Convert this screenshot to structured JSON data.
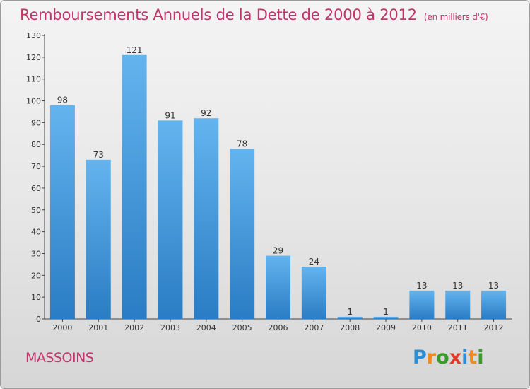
{
  "chart_data": {
    "type": "bar",
    "title": "Remboursements Annuels de la Dette de 2000 à 2012",
    "subtitle": "(en milliers d'€)",
    "categories": [
      "2000",
      "2001",
      "2002",
      "2003",
      "2004",
      "2005",
      "2006",
      "2007",
      "2008",
      "2009",
      "2010",
      "2011",
      "2012"
    ],
    "values": [
      98,
      73,
      121,
      91,
      92,
      78,
      29,
      24,
      1,
      1,
      13,
      13,
      13
    ],
    "yticks": [
      0,
      10,
      20,
      30,
      40,
      50,
      60,
      70,
      80,
      90,
      100,
      110,
      120,
      130
    ],
    "ylim": [
      0,
      130
    ],
    "xlabel": "",
    "ylabel": "",
    "grid": false
  },
  "footer": {
    "commune": "MASSOINS"
  },
  "logo": {
    "letters": [
      "P",
      "r",
      "o",
      "x",
      "i",
      "t",
      "i"
    ],
    "colors": [
      "#2a8fd6",
      "#f08a1c",
      "#3a9a2a",
      "#e23a2a",
      "#2a8fd6",
      "#f08a1c",
      "#3a9a2a"
    ]
  },
  "colors": {
    "title": "#c4336a",
    "bar_light": "#5fb0ea",
    "bar_dark": "#2b7fc8"
  }
}
